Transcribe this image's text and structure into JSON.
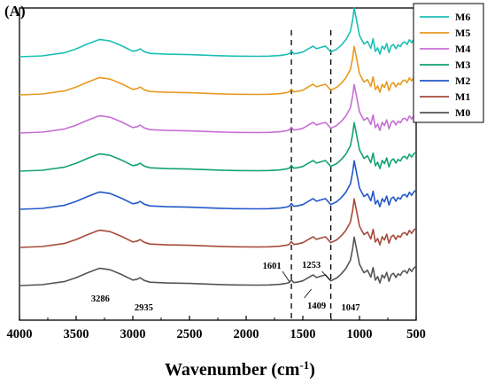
{
  "chart_data": {
    "type": "line",
    "panel_label": "(A)",
    "title": "",
    "xlabel": "Wavenumber (cm",
    "xlabel_superscript": "-1",
    "xlabel_close": ")",
    "ylabel": "",
    "xlim": [
      4000,
      500
    ],
    "x_reversed": true,
    "x_ticks": [
      4000,
      3500,
      3000,
      2500,
      2000,
      1500,
      1000,
      500
    ],
    "y_ticks_shown": false,
    "grid": false,
    "legend_position": "top-right",
    "annotations": [
      {
        "text": "3286",
        "x": 3286
      },
      {
        "text": "2935",
        "x": 2935
      },
      {
        "text": "1601",
        "x": 1601
      },
      {
        "text": "1253",
        "x": 1253
      },
      {
        "text": "1409",
        "x": 1409
      },
      {
        "text": "1047",
        "x": 1047
      }
    ],
    "dashed_lines_x": [
      1601,
      1253
    ],
    "series": [
      {
        "name": "M6",
        "color": "#1abfb4",
        "offset": 6
      },
      {
        "name": "M5",
        "color": "#e89a1f",
        "offset": 5
      },
      {
        "name": "M4",
        "color": "#c86dd6",
        "offset": 4
      },
      {
        "name": "M3",
        "color": "#12a36e",
        "offset": 3
      },
      {
        "name": "M2",
        "color": "#2258c9",
        "offset": 2
      },
      {
        "name": "M1",
        "color": "#a64a3a",
        "offset": 1
      },
      {
        "name": "M0",
        "color": "#555555",
        "offset": 0
      }
    ],
    "spectrum_x": [
      4000,
      3800,
      3600,
      3500,
      3400,
      3300,
      3286,
      3200,
      3100,
      3000,
      2960,
      2935,
      2900,
      2850,
      2700,
      2500,
      2300,
      2100,
      1900,
      1800,
      1700,
      1650,
      1620,
      1601,
      1580,
      1550,
      1500,
      1450,
      1409,
      1380,
      1340,
      1300,
      1253,
      1200,
      1160,
      1120,
      1080,
      1060,
      1047,
      1030,
      1000,
      960,
      930,
      900,
      880,
      860,
      840,
      820,
      800,
      780,
      760,
      740,
      720,
      700,
      680,
      660,
      640,
      620,
      600,
      580,
      560,
      540,
      520,
      500
    ],
    "spectrum_y": [
      0.0,
      0.04,
      0.19,
      0.37,
      0.6,
      0.8,
      0.81,
      0.74,
      0.52,
      0.26,
      0.3,
      0.37,
      0.24,
      0.16,
      0.12,
      0.1,
      0.06,
      0.03,
      0.02,
      0.03,
      0.06,
      0.1,
      0.14,
      0.27,
      0.14,
      0.16,
      0.22,
      0.38,
      0.5,
      0.38,
      0.44,
      0.5,
      0.22,
      0.36,
      0.55,
      0.8,
      1.2,
      1.75,
      2.28,
      1.82,
      1.0,
      0.6,
      0.72,
      0.4,
      0.85,
      0.25,
      0.42,
      0.12,
      0.5,
      0.35,
      0.62,
      0.2,
      0.5,
      0.58,
      0.38,
      0.55,
      0.48,
      0.65,
      0.7,
      0.58,
      0.8,
      0.66,
      0.82,
      0.9
    ]
  }
}
